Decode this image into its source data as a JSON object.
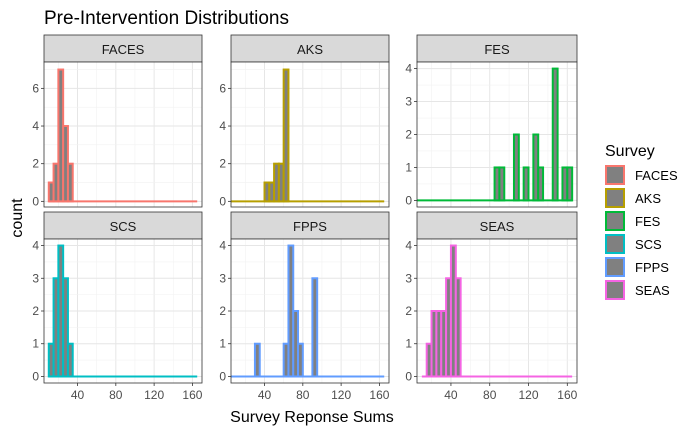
{
  "chart_data": {
    "type": "bar",
    "title": "Pre-Intervention Distributions",
    "xlabel": "Survey Reponse Sums",
    "ylabel": "count",
    "xlim": [
      5,
      170
    ],
    "x_ticks": [
      40,
      80,
      120,
      160
    ],
    "bin_width": 5,
    "grid": true,
    "fill_color": "#808080",
    "legend": {
      "title": "Survey",
      "position": "right",
      "entries": [
        {
          "name": "FACES",
          "color": "#F8766D"
        },
        {
          "name": "AKS",
          "color": "#B79F00"
        },
        {
          "name": "FES",
          "color": "#00BA38"
        },
        {
          "name": "SCS",
          "color": "#00BFC4"
        },
        {
          "name": "FPPS",
          "color": "#619CFF"
        },
        {
          "name": "SEAS",
          "color": "#F564E3"
        }
      ]
    },
    "panels": [
      {
        "name": "FACES",
        "color": "#F8766D",
        "ylim": [
          -0.3,
          7.4
        ],
        "y_ticks": [
          0,
          2,
          4,
          6
        ],
        "bins": [
          [
            10,
            1
          ],
          [
            15,
            2
          ],
          [
            20,
            7
          ],
          [
            25,
            4
          ],
          [
            30,
            2
          ]
        ],
        "baseline": [
          10,
          165
        ]
      },
      {
        "name": "AKS",
        "color": "#B79F00",
        "ylim": [
          -0.3,
          7.4
        ],
        "y_ticks": [
          0,
          2,
          4,
          6
        ],
        "bins": [
          [
            40,
            1
          ],
          [
            45,
            1
          ],
          [
            50,
            2
          ],
          [
            55,
            2
          ],
          [
            60,
            7
          ]
        ],
        "baseline": [
          5,
          165
        ]
      },
      {
        "name": "FES",
        "color": "#00BA38",
        "ylim": [
          -0.2,
          4.2
        ],
        "y_ticks": [
          0,
          1,
          2,
          3,
          4
        ],
        "bins": [
          [
            85,
            1
          ],
          [
            90,
            1
          ],
          [
            105,
            2
          ],
          [
            115,
            1
          ],
          [
            125,
            2
          ],
          [
            130,
            1
          ],
          [
            145,
            4
          ],
          [
            155,
            1
          ],
          [
            160,
            1
          ]
        ],
        "baseline": [
          5,
          165
        ]
      },
      {
        "name": "SCS",
        "color": "#00BFC4",
        "ylim": [
          -0.2,
          4.2
        ],
        "y_ticks": [
          0,
          1,
          2,
          3,
          4
        ],
        "bins": [
          [
            10,
            1
          ],
          [
            15,
            3
          ],
          [
            20,
            4
          ],
          [
            25,
            3
          ],
          [
            30,
            1
          ]
        ],
        "baseline": [
          10,
          165
        ]
      },
      {
        "name": "FPPS",
        "color": "#619CFF",
        "ylim": [
          -0.2,
          4.2
        ],
        "y_ticks": [
          0,
          1,
          2,
          3,
          4
        ],
        "bins": [
          [
            30,
            1
          ],
          [
            60,
            1
          ],
          [
            65,
            4
          ],
          [
            70,
            2
          ],
          [
            75,
            1
          ],
          [
            90,
            3
          ]
        ],
        "baseline": [
          5,
          165
        ]
      },
      {
        "name": "SEAS",
        "color": "#F564E3",
        "ylim": [
          -0.2,
          4.2
        ],
        "y_ticks": [
          0,
          1,
          2,
          3,
          4
        ],
        "bins": [
          [
            15,
            1
          ],
          [
            20,
            2
          ],
          [
            25,
            2
          ],
          [
            30,
            2
          ],
          [
            35,
            3
          ],
          [
            40,
            4
          ],
          [
            45,
            3
          ]
        ],
        "baseline": [
          10,
          165
        ]
      }
    ]
  }
}
